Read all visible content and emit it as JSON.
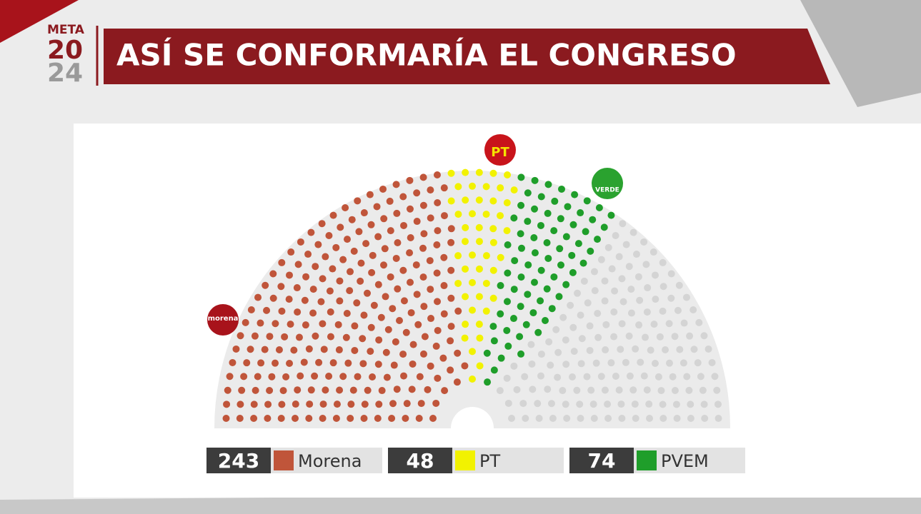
{
  "chart_data": {
    "type": "parliament",
    "title": "ASÍ SE CONFORMARÍA EL CONGRESO",
    "categories": [
      "Morena",
      "PT",
      "PVEM"
    ],
    "values": [
      243,
      48,
      74
    ],
    "colors": [
      "#c0553a",
      "#f2f200",
      "#1f9e2a"
    ],
    "empty_color": "#d4d4d4"
  },
  "branding": {
    "meta": "META",
    "year_top": "20",
    "year_bottom": "24"
  },
  "logos": {
    "pt": "PT",
    "verde": "VERDE",
    "morena": "morena"
  }
}
